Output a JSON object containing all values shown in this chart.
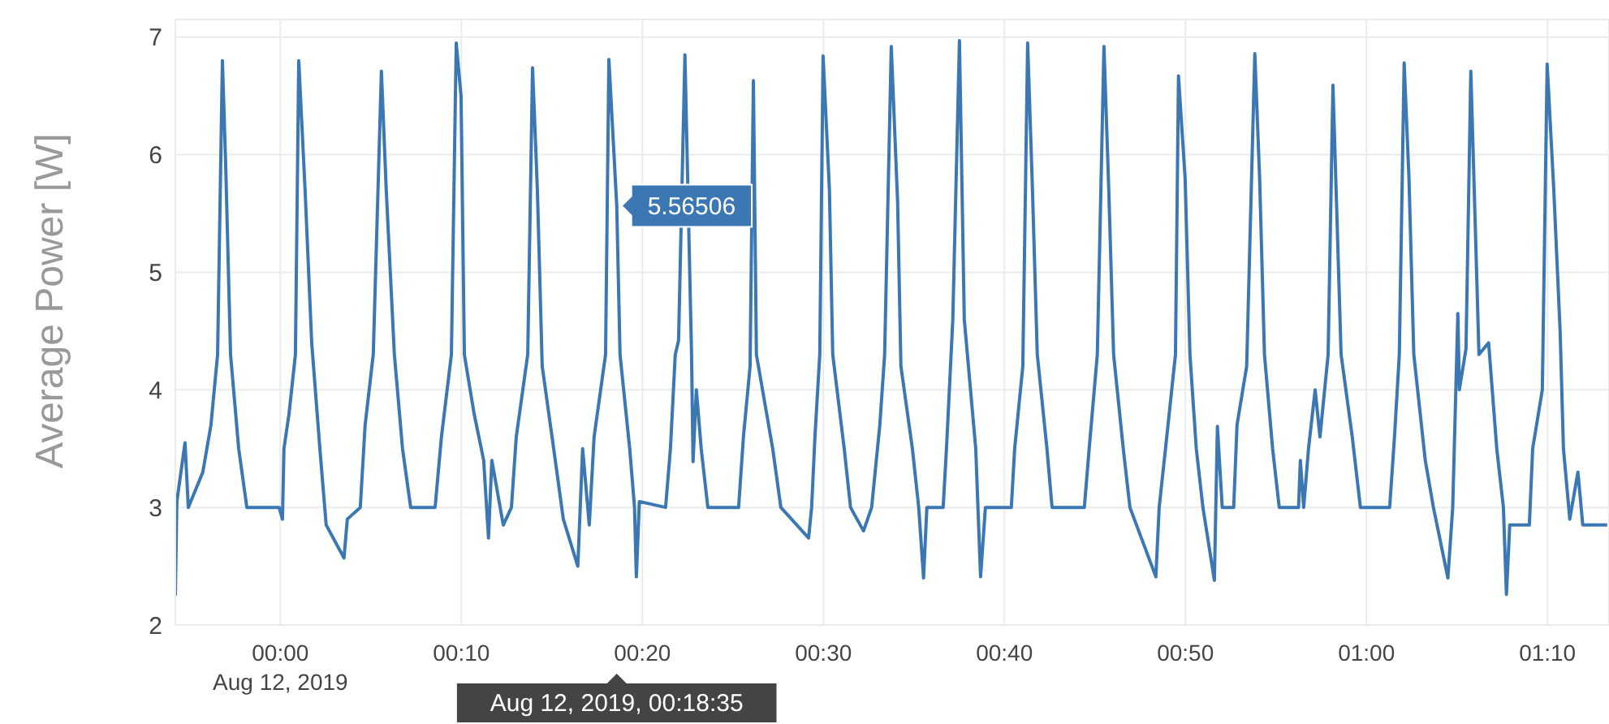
{
  "chart_data": {
    "type": "line",
    "ylabel": "Average Power [W]",
    "x": [
      "2019-08-11T23:54:12",
      "2019-08-11T23:54:17",
      "2019-08-11T23:54:44",
      "2019-08-11T23:54:55",
      "2019-08-11T23:55:43",
      "2019-08-11T23:56:10",
      "2019-08-11T23:56:32",
      "2019-08-11T23:56:48",
      "2019-08-11T23:56:59",
      "2019-08-11T23:57:15",
      "2019-08-11T23:57:42",
      "2019-08-11T23:58:09",
      "2019-08-11T23:59:56",
      "2019-08-12T00:00:07",
      "2019-08-12T00:00:12",
      "2019-08-12T00:00:29",
      "2019-08-12T00:00:50",
      "2019-08-12T00:01:01",
      "2019-08-12T00:01:22",
      "2019-08-12T00:01:44",
      "2019-08-12T00:02:11",
      "2019-08-12T00:02:32",
      "2019-08-12T00:03:31",
      "2019-08-12T00:03:42",
      "2019-08-12T00:04:25",
      "2019-08-12T00:04:41",
      "2019-08-12T00:05:08",
      "2019-08-12T00:05:35",
      "2019-08-12T00:05:51",
      "2019-08-12T00:06:18",
      "2019-08-12T00:06:45",
      "2019-08-12T00:07:12",
      "2019-08-12T00:08:33",
      "2019-08-12T00:08:54",
      "2019-08-12T00:09:27",
      "2019-08-12T00:09:43",
      "2019-08-12T00:09:59",
      "2019-08-12T00:10:10",
      "2019-08-12T00:10:42",
      "2019-08-12T00:11:14",
      "2019-08-12T00:11:30",
      "2019-08-12T00:11:41",
      "2019-08-12T00:12:19",
      "2019-08-12T00:12:46",
      "2019-08-12T00:13:02",
      "2019-08-12T00:13:40",
      "2019-08-12T00:13:56",
      "2019-08-12T00:14:12",
      "2019-08-12T00:14:28",
      "2019-08-12T00:15:06",
      "2019-08-12T00:15:38",
      "2019-08-12T00:16:26",
      "2019-08-12T00:16:42",
      "2019-08-12T00:17:04",
      "2019-08-12T00:17:20",
      "2019-08-12T00:17:58",
      "2019-08-12T00:18:09",
      "2019-08-12T00:18:35",
      "2019-08-12T00:18:46",
      "2019-08-12T00:19:18",
      "2019-08-12T00:19:34",
      "2019-08-12T00:19:40",
      "2019-08-12T00:19:50",
      "2019-08-12T00:21:17",
      "2019-08-12T00:21:33",
      "2019-08-12T00:21:49",
      "2019-08-12T00:22:00",
      "2019-08-12T00:22:21",
      "2019-08-12T00:22:43",
      "2019-08-12T00:22:48",
      "2019-08-12T00:22:59",
      "2019-08-12T00:23:15",
      "2019-08-12T00:23:37",
      "2019-08-12T00:25:19",
      "2019-08-12T00:25:35",
      "2019-08-12T00:25:57",
      "2019-08-12T00:26:08",
      "2019-08-12T00:26:18",
      "2019-08-12T00:27:12",
      "2019-08-12T00:27:39",
      "2019-08-12T00:29:11",
      "2019-08-12T00:29:21",
      "2019-08-12T00:29:32",
      "2019-08-12T00:29:48",
      "2019-08-12T00:29:59",
      "2019-08-12T00:30:20",
      "2019-08-12T00:30:31",
      "2019-08-12T00:31:09",
      "2019-08-12T00:31:30",
      "2019-08-12T00:32:13",
      "2019-08-12T00:32:40",
      "2019-08-12T00:33:07",
      "2019-08-12T00:33:23",
      "2019-08-12T00:33:45",
      "2019-08-12T00:34:06",
      "2019-08-12T00:34:17",
      "2019-08-12T00:34:55",
      "2019-08-12T00:35:16",
      "2019-08-12T00:35:32",
      "2019-08-12T00:35:43",
      "2019-08-12T00:36:37",
      "2019-08-12T00:36:48",
      "2019-08-12T00:37:09",
      "2019-08-12T00:37:31",
      "2019-08-12T00:37:47",
      "2019-08-12T00:38:25",
      "2019-08-12T00:38:41",
      "2019-08-12T00:38:57",
      "2019-08-12T00:40:23",
      "2019-08-12T00:40:34",
      "2019-08-12T00:41:01",
      "2019-08-12T00:41:17",
      "2019-08-12T00:41:33",
      "2019-08-12T00:41:49",
      "2019-08-12T00:42:21",
      "2019-08-12T00:42:38",
      "2019-08-12T00:44:25",
      "2019-08-12T00:44:41",
      "2019-08-12T00:45:08",
      "2019-08-12T00:45:30",
      "2019-08-12T00:45:46",
      "2019-08-12T00:46:02",
      "2019-08-12T00:46:34",
      "2019-08-12T00:46:56",
      "2019-08-12T00:48:22",
      "2019-08-12T00:48:33",
      "2019-08-12T00:48:54",
      "2019-08-12T00:49:27",
      "2019-08-12T00:49:37",
      "2019-08-12T00:49:59",
      "2019-08-12T00:50:15",
      "2019-08-12T00:50:36",
      "2019-08-12T00:50:58",
      "2019-08-12T00:51:36",
      "2019-08-12T00:51:46",
      "2019-08-12T00:52:02",
      "2019-08-12T00:52:40",
      "2019-08-12T00:52:51",
      "2019-08-12T00:53:23",
      "2019-08-12T00:53:50",
      "2019-08-12T00:54:06",
      "2019-08-12T00:54:22",
      "2019-08-12T00:54:49",
      "2019-08-12T00:55:11",
      "2019-08-12T00:56:15",
      "2019-08-12T00:56:21",
      "2019-08-12T00:56:32",
      "2019-08-12T00:56:48",
      "2019-08-12T00:57:10",
      "2019-08-12T00:57:26",
      "2019-08-12T00:57:53",
      "2019-08-12T00:58:09",
      "2019-08-12T00:58:36",
      "2019-08-12T00:59:13",
      "2019-08-12T00:59:40",
      "2019-08-12T01:01:17",
      "2019-08-12T01:01:33",
      "2019-08-12T01:01:49",
      "2019-08-12T01:02:05",
      "2019-08-12T01:02:21",
      "2019-08-12T01:02:37",
      "2019-08-12T01:03:15",
      "2019-08-12T01:03:42",
      "2019-08-12T01:04:30",
      "2019-08-12T01:04:46",
      "2019-08-12T01:05:03",
      "2019-08-12T01:05:08",
      "2019-08-12T01:05:30",
      "2019-08-12T01:05:46",
      "2019-08-12T01:06:13",
      "2019-08-12T01:06:45",
      "2019-08-12T01:07:12",
      "2019-08-12T01:07:34",
      "2019-08-12T01:07:44",
      "2019-08-12T01:07:55",
      "2019-08-12T01:09:00",
      "2019-08-12T01:09:11",
      "2019-08-12T01:09:43",
      "2019-08-12T01:09:59",
      "2019-08-12T01:10:21",
      "2019-08-12T01:10:42",
      "2019-08-12T01:10:53",
      "2019-08-12T01:11:14",
      "2019-08-12T01:11:41",
      "2019-08-12T01:11:57",
      "2019-08-12T01:13:18"
    ],
    "series": [
      {
        "color": "#3b78b3",
        "values": [
          2.25,
          3.05,
          3.55,
          3.0,
          3.3,
          3.7,
          4.3,
          6.8,
          5.9,
          4.3,
          3.5,
          3.0,
          3.0,
          2.9,
          3.5,
          3.8,
          4.3,
          6.8,
          5.7,
          4.4,
          3.5,
          2.85,
          2.57,
          2.9,
          3.0,
          3.7,
          4.3,
          6.71,
          5.7,
          4.3,
          3.5,
          3.0,
          3.0,
          3.6,
          4.3,
          6.95,
          6.5,
          4.3,
          3.8,
          3.4,
          2.74,
          3.4,
          2.85,
          3.0,
          3.6,
          4.3,
          6.74,
          5.7,
          4.2,
          3.5,
          2.9,
          2.5,
          3.5,
          2.85,
          3.6,
          4.3,
          6.81,
          5.57,
          4.3,
          3.5,
          3.0,
          2.41,
          3.05,
          3.0,
          3.5,
          4.3,
          4.42,
          6.85,
          4.3,
          3.39,
          4.0,
          3.5,
          3.0,
          3.0,
          3.6,
          4.2,
          6.63,
          4.3,
          3.5,
          3.0,
          2.74,
          3.0,
          3.6,
          4.3,
          6.84,
          5.7,
          4.3,
          3.5,
          3.0,
          2.8,
          3.0,
          3.7,
          4.3,
          6.92,
          5.6,
          4.2,
          3.5,
          3.0,
          2.4,
          3.0,
          3.0,
          3.5,
          4.6,
          6.97,
          4.6,
          3.5,
          2.41,
          3.0,
          3.0,
          3.5,
          4.2,
          6.95,
          5.7,
          4.3,
          3.5,
          3.0,
          3.0,
          3.5,
          4.3,
          6.92,
          5.7,
          4.3,
          3.5,
          3.0,
          2.41,
          3.0,
          3.5,
          4.3,
          6.67,
          5.8,
          4.3,
          3.5,
          3.0,
          2.38,
          3.69,
          3.0,
          3.0,
          3.7,
          4.2,
          6.86,
          5.8,
          4.3,
          3.5,
          3.0,
          3.0,
          3.4,
          3.0,
          3.5,
          4.0,
          3.6,
          4.3,
          6.59,
          4.3,
          3.6,
          3.0,
          3.0,
          3.6,
          4.3,
          6.78,
          5.8,
          4.3,
          3.4,
          3.0,
          2.4,
          3.0,
          4.65,
          4.0,
          4.35,
          6.71,
          4.3,
          4.4,
          3.5,
          3.0,
          2.26,
          2.85,
          2.85,
          3.5,
          4.0,
          6.77,
          5.7,
          4.5,
          3.5,
          2.9,
          3.3,
          2.85,
          2.85
        ]
      }
    ],
    "xlim": [
      "2019-08-11T23:54:12",
      "2019-08-12T01:13:24"
    ],
    "xticks": [
      {
        "value": "2019-08-12T00:00",
        "label": "00:00\nAug 12, 2019"
      },
      {
        "value": "2019-08-12T00:10",
        "label": "00:10"
      },
      {
        "value": "2019-08-12T00:20",
        "label": "00:20"
      },
      {
        "value": "2019-08-12T00:30",
        "label": "00:30"
      },
      {
        "value": "2019-08-12T00:40",
        "label": "00:40"
      },
      {
        "value": "2019-08-12T00:50",
        "label": "00:50"
      },
      {
        "value": "2019-08-12T01:00",
        "label": "01:00"
      },
      {
        "value": "2019-08-12T01:10",
        "label": "01:10"
      }
    ],
    "ylim": [
      2,
      7.15
    ],
    "yticks": [
      2,
      3,
      4,
      5,
      6,
      7
    ],
    "grid": true,
    "legend": false,
    "marker": "none",
    "line_style": "solid",
    "annotations": [
      {
        "text": "5.56506",
        "x": "2019-08-12T00:18:35",
        "y": 5.56506
      },
      "Aug 12, 2019, 00:18:35"
    ]
  }
}
